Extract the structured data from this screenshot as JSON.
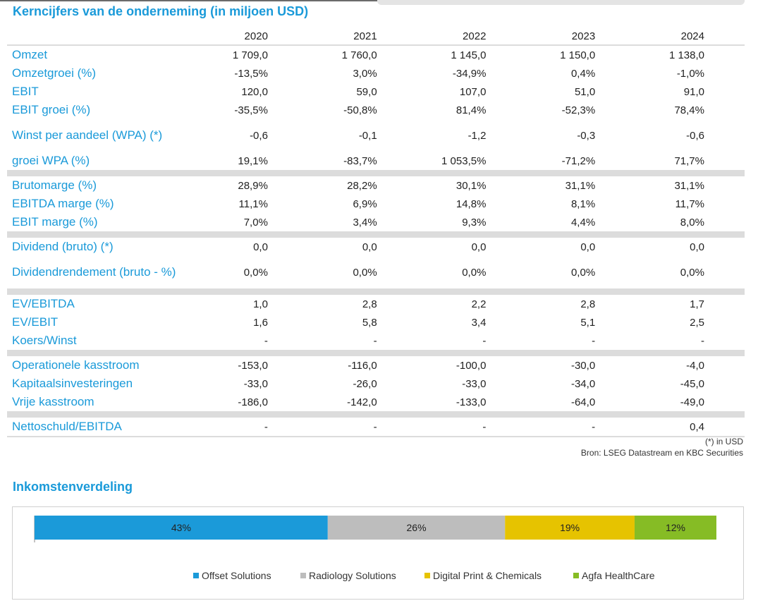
{
  "title": "Kerncijfers van de onderneming (in miljoen USD)",
  "years": [
    "2020",
    "2021",
    "2022",
    "2023",
    "2024"
  ],
  "groups": [
    [
      {
        "label": "Omzet",
        "values": [
          "1 709,0",
          "1 760,0",
          "1 145,0",
          "1 150,0",
          "1 138,0"
        ]
      },
      {
        "label": "Omzetgroei (%)",
        "values": [
          "-13,5%",
          "3,0%",
          "-34,9%",
          "0,4%",
          "-1,0%"
        ]
      },
      {
        "label": "EBIT",
        "values": [
          "120,0",
          "59,0",
          "107,0",
          "51,0",
          "91,0"
        ]
      },
      {
        "label": "EBIT groei (%)",
        "values": [
          "-35,5%",
          "-50,8%",
          "81,4%",
          "-52,3%",
          "78,4%"
        ]
      },
      {
        "label": "Winst per aandeel (WPA) (*)",
        "values": [
          "-0,6",
          "-0,1",
          "-1,2",
          "-0,3",
          "-0,6"
        ]
      },
      {
        "label": "groei WPA (%)",
        "values": [
          "19,1%",
          "-83,7%",
          "1 053,5%",
          "-71,2%",
          "71,7%"
        ]
      }
    ],
    [
      {
        "label": "Brutomarge (%)",
        "values": [
          "28,9%",
          "28,2%",
          "30,1%",
          "31,1%",
          "31,1%"
        ]
      },
      {
        "label": "EBITDA marge (%)",
        "values": [
          "11,1%",
          "6,9%",
          "14,8%",
          "8,1%",
          "11,7%"
        ]
      },
      {
        "label": "EBIT marge (%)",
        "values": [
          "7,0%",
          "3,4%",
          "9,3%",
          "4,4%",
          "8,0%"
        ]
      }
    ],
    [
      {
        "label": "Dividend (bruto) (*)",
        "values": [
          "0,0",
          "0,0",
          "0,0",
          "0,0",
          "0,0"
        ]
      },
      {
        "label": "Dividendrendement (bruto - %)",
        "values": [
          "0,0%",
          "0,0%",
          "0,0%",
          "0,0%",
          "0,0%"
        ]
      }
    ],
    [
      {
        "label": "EV/EBITDA",
        "values": [
          "1,0",
          "2,8",
          "2,2",
          "2,8",
          "1,7"
        ]
      },
      {
        "label": "EV/EBIT",
        "values": [
          "1,6",
          "5,8",
          "3,4",
          "5,1",
          "2,5"
        ]
      },
      {
        "label": "Koers/Winst",
        "values": [
          "-",
          "-",
          "-",
          "-",
          "-"
        ]
      }
    ],
    [
      {
        "label": "Operationele kasstroom",
        "values": [
          "-153,0",
          "-116,0",
          "-100,0",
          "-30,0",
          "-4,0"
        ]
      },
      {
        "label": "Kapitaalsinvesteringen",
        "values": [
          "-33,0",
          "-26,0",
          "-33,0",
          "-34,0",
          "-45,0"
        ]
      },
      {
        "label": "Vrije kasstroom",
        "values": [
          "-186,0",
          "-142,0",
          "-133,0",
          "-64,0",
          "-49,0"
        ]
      }
    ],
    [
      {
        "label": "Nettoschuld/EBITDA",
        "values": [
          "-",
          "-",
          "-",
          "-",
          "0,4"
        ]
      }
    ]
  ],
  "footnote": "(*) in USD",
  "source": "Bron: LSEG Datastream en KBC Securities",
  "income_title": "Inkomstenverdeling",
  "chart_data": {
    "type": "bar",
    "stacked": true,
    "orientation": "horizontal",
    "series": [
      {
        "name": "Offset Solutions",
        "value": 43,
        "label": "43%",
        "color": "#1b9ad9"
      },
      {
        "name": "Radiology Solutions",
        "value": 26,
        "label": "26%",
        "color": "#bdbdbd"
      },
      {
        "name": "Digital Print & Chemicals",
        "value": 19,
        "label": "19%",
        "color": "#e6c300"
      },
      {
        "name": "Agfa HealthCare",
        "value": 12,
        "label": "12%",
        "color": "#86bc25"
      }
    ],
    "legend_position": "bottom"
  }
}
